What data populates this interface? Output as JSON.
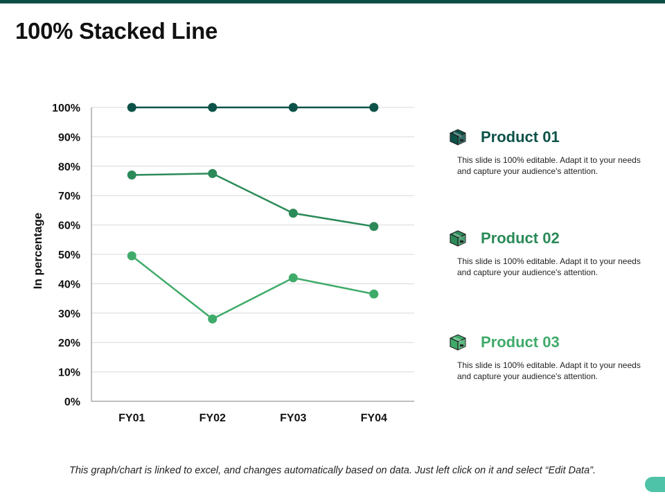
{
  "slide": {
    "title": "100% Stacked Line",
    "footer": "This graph/chart is linked to excel, and changes automatically based on data. Just left click on it and select “Edit Data”."
  },
  "colors": {
    "top_bar": "#0b4f47",
    "corner_pill": "#4fc3a8",
    "gridline": "#d9d9d9",
    "axis": "#7f7f7f"
  },
  "chart_data": {
    "type": "line",
    "stacking": "percent",
    "ylabel": "In percentage",
    "xlabel": "",
    "categories": [
      "FY01",
      "FY02",
      "FY03",
      "FY04"
    ],
    "ylim": [
      0,
      100
    ],
    "yticks": [
      0,
      10,
      20,
      30,
      40,
      50,
      60,
      70,
      80,
      90,
      100
    ],
    "ytick_labels": [
      "0%",
      "10%",
      "20%",
      "30%",
      "40%",
      "50%",
      "60%",
      "70%",
      "80%",
      "90%",
      "100%"
    ],
    "grid": true,
    "legend_position": "right",
    "series": [
      {
        "name": "Product 01",
        "color": "#0d5249",
        "cumulative_values": [
          100,
          100,
          100,
          100
        ]
      },
      {
        "name": "Product 02",
        "color": "#2b8a58",
        "cumulative_values": [
          77,
          77.5,
          64,
          59.5
        ]
      },
      {
        "name": "Product 03",
        "color": "#3fab6a",
        "cumulative_values": [
          49.5,
          28,
          42,
          36.5
        ]
      }
    ]
  },
  "legend": [
    {
      "name": "Product 01",
      "icon": "package-box-icon",
      "color": "#0d5249",
      "description": "This slide is 100% editable. Adapt it to your needs and capture your audience's attention."
    },
    {
      "name": "Product 02",
      "icon": "package-box-icon",
      "color": "#2b8a58",
      "description": "This slide is 100% editable. Adapt it to your needs and capture your audience's attention."
    },
    {
      "name": "Product 03",
      "icon": "package-box-icon",
      "color": "#3fab6a",
      "description": "This slide is 100% editable. Adapt it to your needs and capture your audience's attention."
    }
  ]
}
